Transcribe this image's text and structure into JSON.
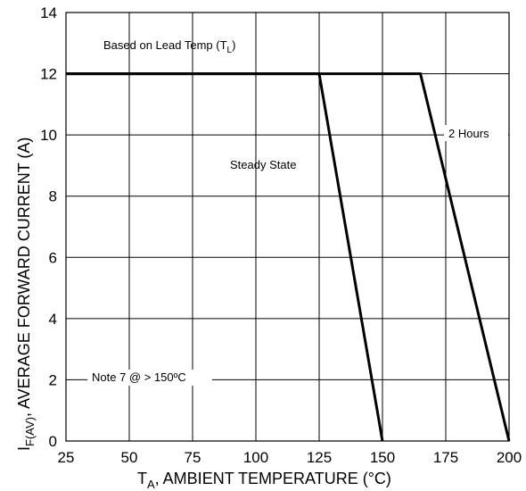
{
  "chart_data": {
    "type": "line",
    "xlabel": {
      "main": "T",
      "sub": "A",
      "rest": ", AMBIENT TEMPERATURE (°C)"
    },
    "ylabel": {
      "main": "I",
      "sub": "F(AV)",
      "rest": ", AVERAGE FORWARD CURRENT (A)"
    },
    "xlim": [
      25,
      200
    ],
    "ylim": [
      0,
      14
    ],
    "x_ticks": [
      25,
      50,
      75,
      100,
      125,
      150,
      175,
      200
    ],
    "y_ticks": [
      0,
      2,
      4,
      6,
      8,
      10,
      12,
      14
    ],
    "grid": true,
    "series": [
      {
        "name": "Steady State",
        "x": [
          25,
          125,
          150
        ],
        "y": [
          12,
          12,
          0
        ]
      },
      {
        "name": "2 Hours",
        "x": [
          25,
          165,
          200
        ],
        "y": [
          12,
          12,
          0
        ]
      }
    ],
    "annotations": {
      "lead_temp": {
        "main": "Based on Lead Temp (T",
        "sub": "L",
        "rest": ")"
      },
      "steady_state": "Steady State",
      "two_hours": "2 Hours",
      "note": "Note 7 @ > 150ºC"
    }
  }
}
